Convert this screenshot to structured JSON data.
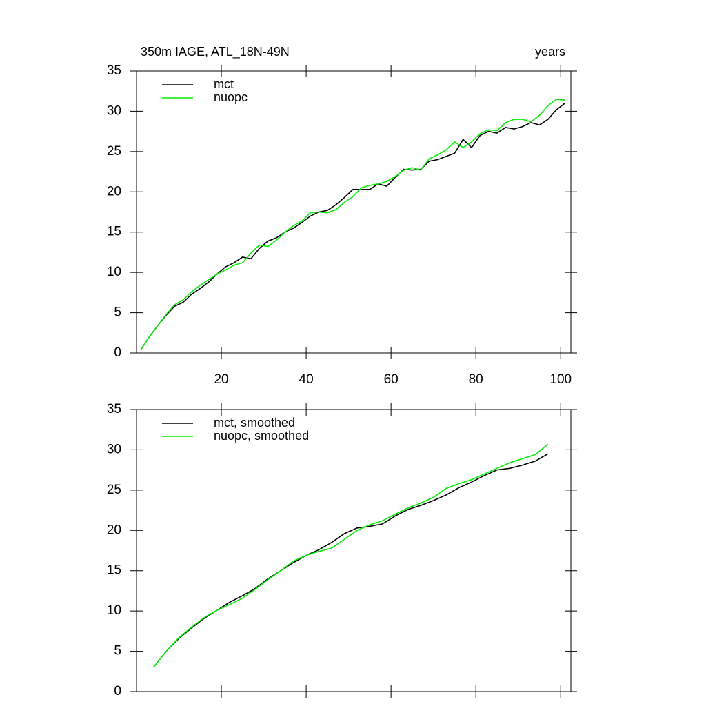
{
  "chart_data": [
    {
      "type": "line",
      "title": "350m IAGE, ATL_18N-49N",
      "right_title": "years",
      "x": [
        1,
        3,
        5,
        7,
        9,
        11,
        13,
        15,
        17,
        19,
        21,
        23,
        25,
        27,
        29,
        31,
        33,
        35,
        37,
        39,
        41,
        43,
        45,
        47,
        49,
        51,
        53,
        55,
        57,
        59,
        61,
        63,
        65,
        67,
        69,
        71,
        73,
        75,
        77,
        79,
        81,
        83,
        85,
        87,
        89,
        91,
        93,
        95,
        97,
        99,
        101
      ],
      "series": [
        {
          "name": "mct",
          "color": "#000000",
          "values": [
            0.4,
            2.0,
            3.4,
            4.7,
            5.8,
            6.3,
            7.3,
            8.0,
            8.8,
            9.8,
            10.7,
            11.2,
            11.9,
            11.7,
            13.0,
            13.9,
            14.3,
            15.0,
            15.5,
            16.2,
            17.0,
            17.5,
            17.7,
            18.4,
            19.3,
            20.3,
            20.3,
            20.3,
            21.0,
            20.7,
            21.8,
            22.8,
            22.7,
            22.8,
            23.8,
            24.0,
            24.4,
            24.8,
            26.5,
            25.5,
            27.0,
            27.5,
            27.3,
            28.0,
            27.8,
            28.1,
            28.6,
            28.3,
            29.0,
            30.2,
            31.0
          ]
        },
        {
          "name": "nuopc",
          "color": "#00ee00",
          "values": [
            0.4,
            2.0,
            3.4,
            4.8,
            6.0,
            6.6,
            7.6,
            8.4,
            9.1,
            9.8,
            10.3,
            10.9,
            11.2,
            12.4,
            13.4,
            13.2,
            14.0,
            15.0,
            15.8,
            16.4,
            17.4,
            17.5,
            17.4,
            17.8,
            18.7,
            19.4,
            20.5,
            20.8,
            21.0,
            21.3,
            21.9,
            22.7,
            23.0,
            22.7,
            24.1,
            24.6,
            25.2,
            26.2,
            25.5,
            26.2,
            27.2,
            27.7,
            27.6,
            28.6,
            29.0,
            29.0,
            28.7,
            29.5,
            30.7,
            31.5,
            31.4
          ]
        }
      ],
      "xlim": [
        0,
        102.4
      ],
      "xticks": [
        20,
        40,
        60,
        80,
        100
      ],
      "xtick_labels": true,
      "ylim": [
        0,
        35
      ],
      "yticks": [
        0,
        5,
        10,
        15,
        20,
        25,
        30,
        35
      ]
    },
    {
      "type": "line",
      "x": [
        4,
        7,
        10,
        13,
        16,
        19,
        22,
        25,
        28,
        31,
        34,
        37,
        40,
        43,
        46,
        49,
        52,
        55,
        58,
        61,
        64,
        67,
        70,
        73,
        76,
        79,
        82,
        85,
        88,
        91,
        94,
        97
      ],
      "series": [
        {
          "name": "mct, smoothed",
          "color": "#000000",
          "values": [
            3.0,
            5.0,
            6.6,
            7.9,
            9.1,
            10.1,
            11.1,
            11.9,
            12.8,
            14.0,
            15.0,
            16.0,
            16.9,
            17.6,
            18.5,
            19.6,
            20.3,
            20.5,
            20.8,
            21.8,
            22.6,
            23.1,
            23.7,
            24.4,
            25.3,
            26.0,
            26.8,
            27.5,
            27.7,
            28.1,
            28.6,
            29.5
          ]
        },
        {
          "name": "nuopc, smoothed",
          "color": "#00ee00",
          "values": [
            3.0,
            5.0,
            6.7,
            8.0,
            9.2,
            10.1,
            10.8,
            11.6,
            12.7,
            13.9,
            15.0,
            16.2,
            16.9,
            17.4,
            17.8,
            18.9,
            20.0,
            20.7,
            21.2,
            22.0,
            22.8,
            23.4,
            24.1,
            25.2,
            25.8,
            26.3,
            27.0,
            27.7,
            28.4,
            28.9,
            29.4,
            30.7
          ]
        }
      ],
      "xlim": [
        0,
        102.4
      ],
      "xticks": [
        20,
        40,
        60,
        80,
        100
      ],
      "xtick_labels": false,
      "ylim": [
        0,
        35
      ],
      "yticks": [
        0,
        5,
        10,
        15,
        20,
        25,
        30,
        35
      ]
    }
  ]
}
